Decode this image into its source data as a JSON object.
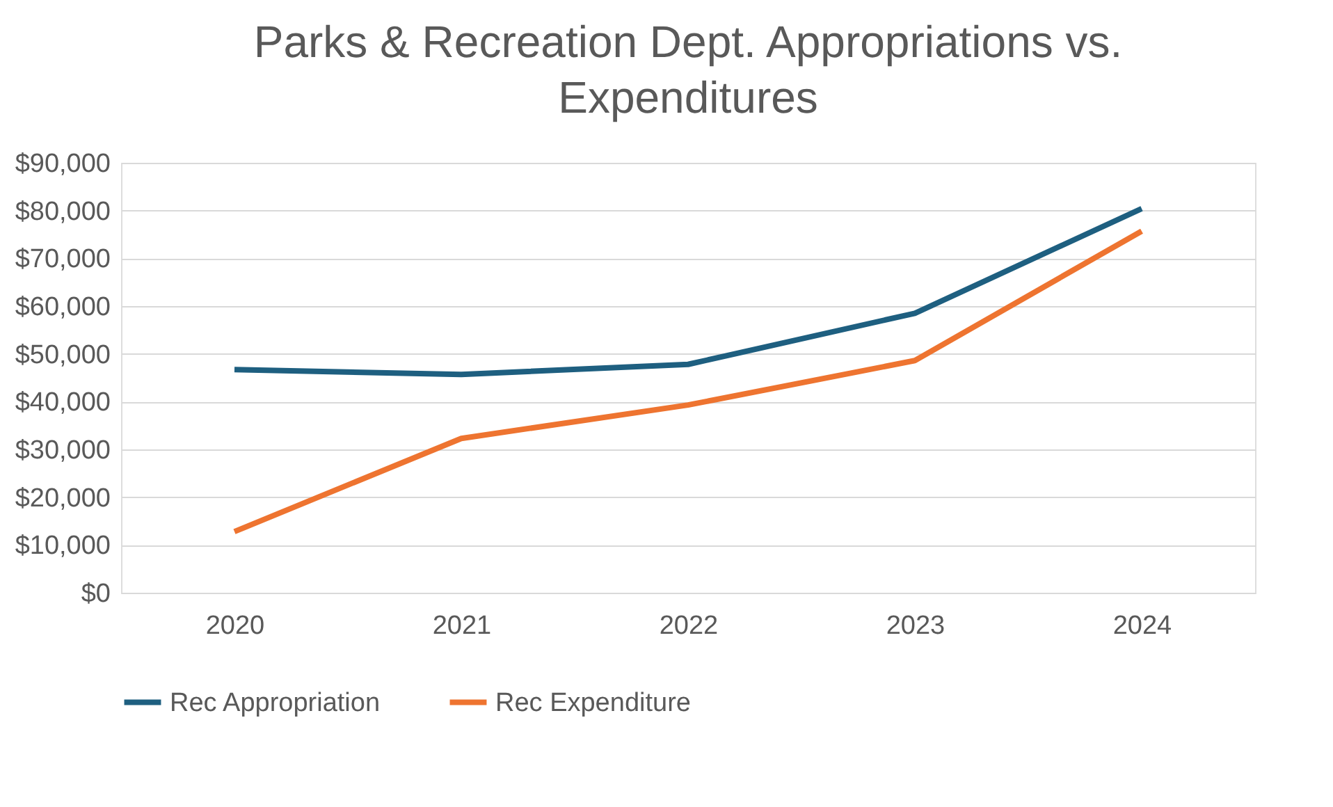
{
  "chart_data": {
    "type": "line",
    "title": "Parks & Recreation Dept. Appropriations vs. Expenditures",
    "categories": [
      "2020",
      "2021",
      "2022",
      "2023",
      "2024"
    ],
    "series": [
      {
        "name": "Rec Appropriation",
        "color": "#1e5f80",
        "values": [
          46700,
          45700,
          47800,
          58500,
          80400
        ]
      },
      {
        "name": "Rec Expenditure",
        "color": "#ee7430",
        "values": [
          12800,
          32300,
          39300,
          48600,
          75700
        ]
      }
    ],
    "ylim": [
      0,
      90000
    ],
    "yticks": [
      {
        "value": 0,
        "label": "$0"
      },
      {
        "value": 10000,
        "label": "$10,000"
      },
      {
        "value": 20000,
        "label": "$20,000"
      },
      {
        "value": 30000,
        "label": "$30,000"
      },
      {
        "value": 40000,
        "label": "$40,000"
      },
      {
        "value": 50000,
        "label": "$50,000"
      },
      {
        "value": 60000,
        "label": "$60,000"
      },
      {
        "value": 70000,
        "label": "$70,000"
      },
      {
        "value": 80000,
        "label": "$80,000"
      },
      {
        "value": 90000,
        "label": "$90,000"
      }
    ],
    "grid": "y",
    "legend": "bottom",
    "marker": "none",
    "line_style": "solid"
  }
}
